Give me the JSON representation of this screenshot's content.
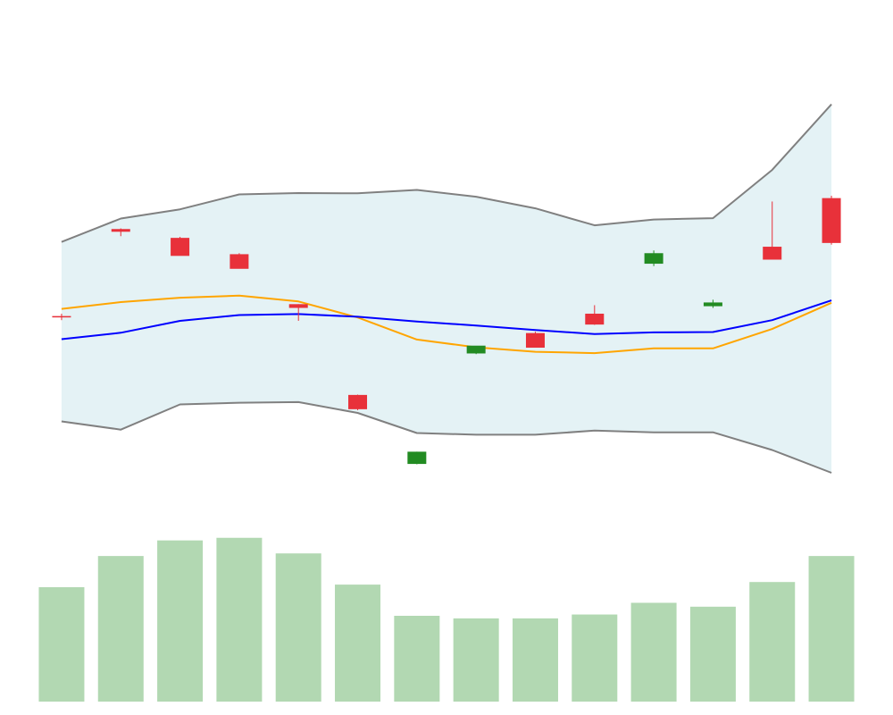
{
  "chart_data": [
    {
      "type": "candlestick",
      "x": [
        1,
        2,
        3,
        4,
        5,
        6,
        7,
        8,
        9,
        10,
        11,
        12,
        13,
        14
      ],
      "open": [
        128.0,
        153.6,
        151.0,
        146.2,
        131.5,
        104.8,
        84.5,
        117.0,
        123.0,
        128.7,
        143.4,
        130.9,
        148.4,
        162.7
      ],
      "high": [
        128.7,
        153.8,
        151.3,
        146.5,
        131.5,
        104.9,
        88.1,
        118.7,
        123.4,
        131.2,
        147.3,
        132.8,
        161.7,
        163.4
      ],
      "low": [
        126.8,
        151.5,
        145.8,
        142.3,
        126.6,
        100.3,
        84.4,
        116.8,
        119.2,
        125.4,
        142.7,
        130.4,
        144.6,
        149.0
      ],
      "close": [
        127.6,
        152.8,
        145.7,
        141.9,
        130.4,
        100.6,
        88.1,
        119.3,
        118.7,
        125.5,
        146.5,
        132.0,
        144.6,
        149.5
      ],
      "up_color": "#228B22",
      "down_color": "#e8313a",
      "bands": {
        "x": [
          1,
          2,
          3,
          4,
          5,
          6,
          7,
          8,
          9,
          10,
          11,
          12,
          13,
          14
        ],
        "upper": [
          149.8,
          156.7,
          159.4,
          163.8,
          164.2,
          164.1,
          165.1,
          163.1,
          159.7,
          154.7,
          156.4,
          156.8,
          171.0,
          190.3
        ],
        "middle": [
          130.1,
          132.1,
          133.4,
          134.0,
          132.3,
          127.6,
          121.1,
          118.8,
          117.5,
          117.1,
          118.5,
          118.5,
          124.2,
          131.9
        ],
        "lower": [
          97.0,
          94.6,
          102.0,
          102.5,
          102.7,
          99.5,
          93.6,
          93.1,
          93.1,
          94.3,
          93.8,
          93.8,
          88.6,
          81.9
        ],
        "trend": [
          121.2,
          123.1,
          126.6,
          128.3,
          128.6,
          127.8,
          126.4,
          125.2,
          123.9,
          122.7,
          123.2,
          123.3,
          126.8,
          132.6
        ],
        "fill_color": "#e4f2f5",
        "upper_lower_color": "#808080",
        "middle_color": "#FFA500",
        "trend_color": "#0000FF"
      },
      "xlim": [
        0.85,
        14.15
      ],
      "ylim": [
        69.8,
        196.0
      ]
    },
    {
      "type": "bar",
      "x": [
        1,
        2,
        3,
        4,
        5,
        6,
        7,
        8,
        9,
        10,
        11,
        12,
        13,
        14
      ],
      "values": [
        4.4,
        5.6,
        6.2,
        6.3,
        5.7,
        4.5,
        3.3,
        3.2,
        3.2,
        3.35,
        3.8,
        3.65,
        4.6,
        5.6
      ],
      "color": "#b2d8b2",
      "ylim": [
        0,
        6.36
      ]
    }
  ]
}
